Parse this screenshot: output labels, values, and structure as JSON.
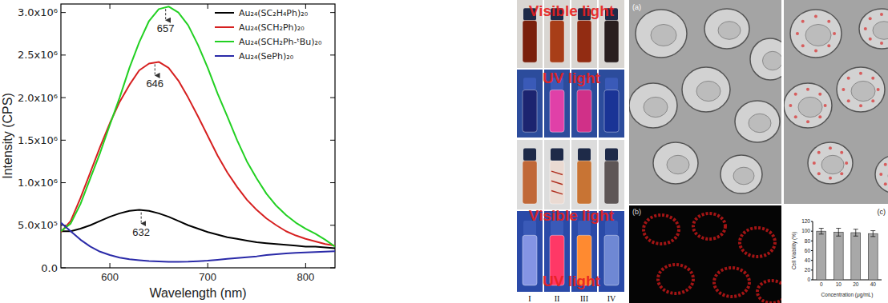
{
  "chart_data": [
    {
      "type": "line",
      "x_label": "Wavelength (nm)",
      "y_label": "Intensity (CPS)",
      "x": [
        550,
        560,
        570,
        580,
        590,
        600,
        610,
        620,
        630,
        640,
        650,
        660,
        670,
        680,
        690,
        700,
        710,
        720,
        730,
        740,
        750,
        760,
        770,
        780,
        790,
        800,
        810,
        820,
        830
      ],
      "series": [
        {
          "name": "Au₂₄(SC₂H₄Ph)₂₀",
          "color": "#000000",
          "values": [
            430000,
            430000,
            460000,
            500000,
            550000,
            600000,
            640000,
            670000,
            680000,
            670000,
            640000,
            600000,
            550000,
            500000,
            460000,
            420000,
            390000,
            360000,
            340000,
            320000,
            300000,
            290000,
            280000,
            270000,
            260000,
            250000,
            250000,
            240000,
            230000
          ]
        },
        {
          "name": "Au₂₄(SCH₂Ph)₂₀",
          "color": "#d62020",
          "values": [
            420000,
            550000,
            820000,
            1120000,
            1420000,
            1700000,
            1950000,
            2150000,
            2320000,
            2400000,
            2420000,
            2350000,
            2200000,
            2000000,
            1780000,
            1550000,
            1320000,
            1120000,
            950000,
            800000,
            680000,
            580000,
            500000,
            430000,
            380000,
            340000,
            310000,
            280000,
            260000
          ]
        },
        {
          "name": "Au₂₄(SCH₂Ph-ᵗBu)₂₀",
          "color": "#22d022",
          "values": [
            430000,
            520000,
            750000,
            1050000,
            1350000,
            1680000,
            2000000,
            2350000,
            2650000,
            2900000,
            3040000,
            3070000,
            3000000,
            2850000,
            2620000,
            2350000,
            2050000,
            1780000,
            1500000,
            1250000,
            1050000,
            870000,
            730000,
            620000,
            530000,
            460000,
            400000,
            330000,
            250000
          ]
        },
        {
          "name": "Au₂₄(SePh)₂₀",
          "color": "#2a2aa8",
          "values": [
            530000,
            430000,
            330000,
            250000,
            190000,
            150000,
            120000,
            100000,
            90000,
            80000,
            75000,
            70000,
            70000,
            72000,
            78000,
            85000,
            95000,
            105000,
            115000,
            125000,
            135000,
            150000,
            160000,
            170000,
            175000,
            180000,
            185000,
            190000,
            195000
          ]
        }
      ],
      "xlim": [
        550,
        830
      ],
      "xticks": [
        600,
        700,
        800
      ],
      "ylim": [
        0,
        3100000
      ],
      "yticks": [
        {
          "value": 0,
          "label": "0.0"
        },
        {
          "value": 500000,
          "label": "5.0x10⁵"
        },
        {
          "value": 1000000,
          "label": "1.0x10⁶"
        },
        {
          "value": 1500000,
          "label": "1.5x10⁶"
        },
        {
          "value": 2000000,
          "label": "2.0x10⁶"
        },
        {
          "value": 2500000,
          "label": "2.5x10⁶"
        },
        {
          "value": 3000000,
          "label": "3.0x10⁶"
        }
      ],
      "annotations": [
        {
          "text": "657",
          "x": 657,
          "y": 3070000
        },
        {
          "text": "646",
          "x": 646,
          "y": 2420000
        },
        {
          "text": "632",
          "x": 632,
          "y": 680000
        }
      ],
      "legend": "top-right",
      "grid": false
    },
    {
      "type": "bar",
      "x_label": "Concentration (μg/mL)",
      "y_label": "Cell Viability (%)",
      "categories": [
        "0",
        "10",
        "20",
        "40"
      ],
      "values": [
        100,
        98,
        97,
        95
      ],
      "errors": [
        6,
        8,
        7,
        6
      ],
      "color": "#a8a8a8",
      "ylim": [
        0,
        120
      ],
      "yticks": [
        0,
        20,
        40,
        60,
        80,
        100,
        120
      ],
      "grid": false
    }
  ],
  "photos": {
    "row_labels": [
      "Visible light",
      "UV light",
      "Visible light",
      "UV light"
    ],
    "columns": [
      "I",
      "II",
      "III",
      "IV"
    ]
  },
  "micrographs": {
    "labels": [
      "(a)",
      "(b)",
      "(c)"
    ]
  }
}
